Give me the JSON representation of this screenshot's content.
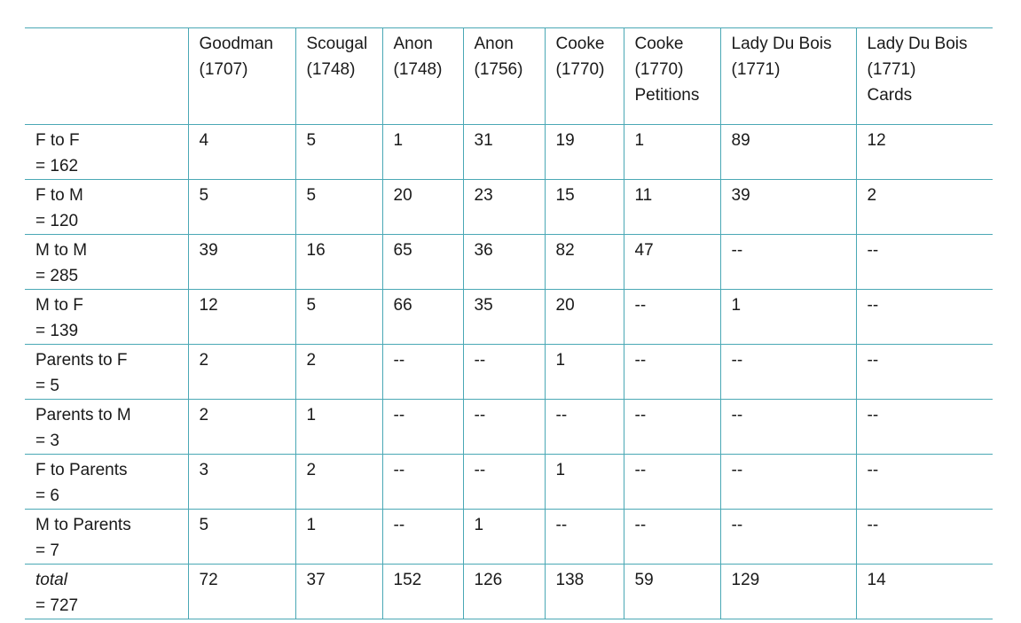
{
  "table": {
    "headers": [
      "",
      "Goodman\n(1707)",
      "Scougal\n(1748)",
      "Anon\n(1748)",
      "Anon\n(1756)",
      "Cooke\n(1770)",
      "Cooke\n(1770)\nPetitions",
      "Lady Du Bois\n(1771)",
      "Lady Du Bois\n(1771)\nCards"
    ],
    "rows": [
      {
        "label": "F to F",
        "total": "= 162",
        "cells": [
          "4",
          "5",
          "1",
          "31",
          "19",
          "1",
          "89",
          "12"
        ]
      },
      {
        "label": "F to M",
        "total": "= 120",
        "cells": [
          "5",
          "5",
          "20",
          "23",
          "15",
          "11",
          "39",
          "2"
        ]
      },
      {
        "label": "M to M",
        "total": "= 285",
        "cells": [
          "39",
          "16",
          "65",
          "36",
          "82",
          "47",
          "--",
          "--"
        ]
      },
      {
        "label": "M to F",
        "total": "= 139",
        "cells": [
          "12",
          "5",
          "66",
          "35",
          "20",
          "--",
          "1",
          "--"
        ]
      },
      {
        "label": "Parents to F",
        "total": "= 5",
        "cells": [
          "2",
          "2",
          "--",
          "--",
          "1",
          "--",
          "--",
          "--"
        ]
      },
      {
        "label": "Parents to M",
        "total": "= 3",
        "cells": [
          "2",
          "1",
          "--",
          "--",
          "--",
          "--",
          "--",
          "--"
        ]
      },
      {
        "label": "F to Parents",
        "total": "= 6",
        "cells": [
          "3",
          "2",
          "--",
          "--",
          "1",
          "--",
          "--",
          "--"
        ]
      },
      {
        "label": "M to Parents",
        "total": "= 7",
        "cells": [
          "5",
          "1",
          "--",
          "1",
          "--",
          "--",
          "--",
          "--"
        ]
      },
      {
        "label": "total",
        "total": "= 727",
        "cells": [
          "72",
          "37",
          "152",
          "126",
          "138",
          "59",
          "129",
          "14"
        ],
        "italic_label": true
      }
    ]
  }
}
